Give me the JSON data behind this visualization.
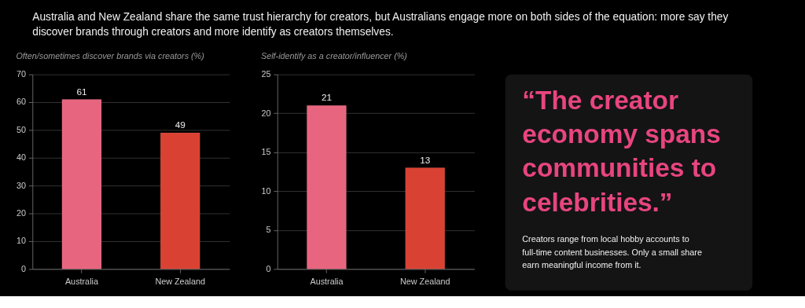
{
  "chart_data": [
    {
      "type": "other",
      "title": "Australia and New Zealand share the same trust hierarchy for creators, but Australians engage more on both sides of the equation: more say they discover brands through creators and more identify as creators themselves."
    },
    {
      "type": "bar",
      "title": "Often/sometimes discover brands via creators (%)",
      "categories": [
        "Australia",
        "New Zealand"
      ],
      "values": [
        61,
        49
      ],
      "colors": [
        "#e8657f",
        "#d94233"
      ],
      "ylim": [
        0,
        70
      ],
      "yticks": [
        0,
        10,
        20,
        30,
        40,
        50,
        60,
        70
      ],
      "grid": "y",
      "data_labels": true
    },
    {
      "type": "bar",
      "title": "Self-identify as a creator/influencer (%)",
      "categories": [
        "Australia",
        "New Zealand"
      ],
      "values": [
        21,
        13
      ],
      "colors": [
        "#e8657f",
        "#d94233"
      ],
      "ylim": [
        0,
        25
      ],
      "yticks": [
        0,
        5,
        10,
        15,
        20,
        25
      ],
      "grid": "y",
      "data_labels": true
    },
    {
      "type": "other",
      "title": "“The creator economy spans communities to celebrities.”",
      "annotations": [
        "Creators range from local hobby accounts to full-time content businesses. Only a small share earn meaningful income from it."
      ]
    }
  ]
}
